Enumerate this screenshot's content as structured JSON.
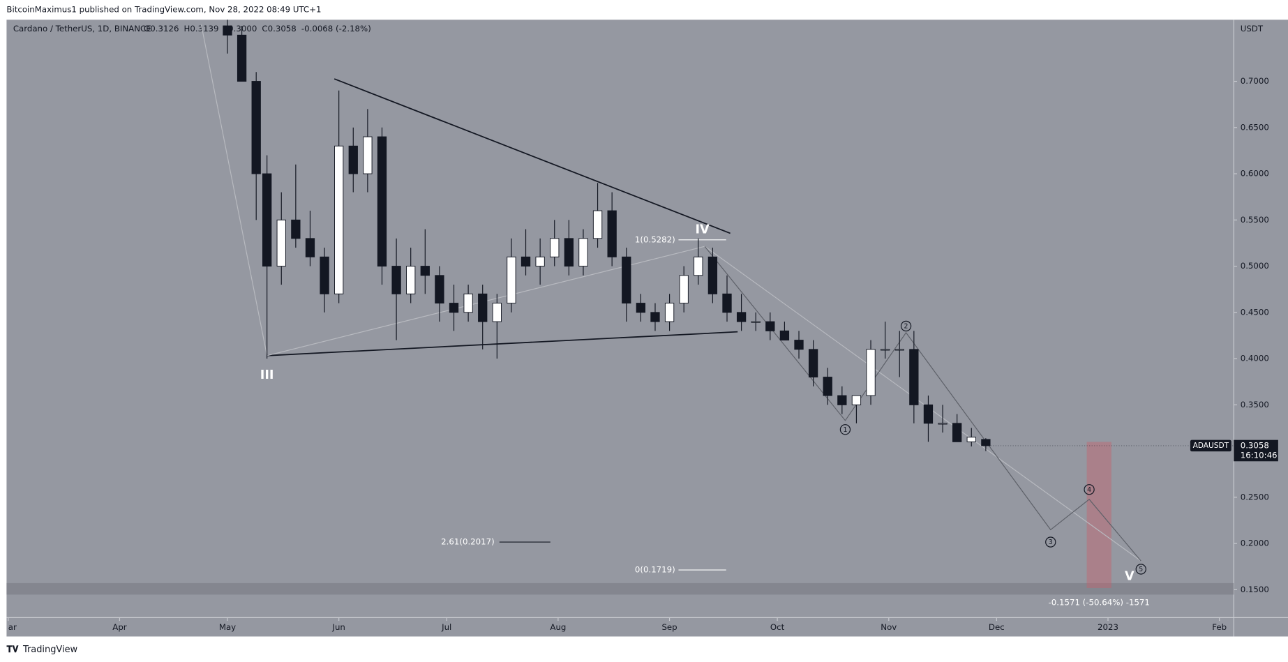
{
  "published": "BitcoinMaximus1 published on TradingView.com, Nov 28, 2022 08:49 UTC+1",
  "footer": "TradingView",
  "chart_data": {
    "type": "candlestick",
    "title": "Cardano / TetherUS, 1D, BINANCE",
    "ohlc_header": [
      "O0.3126",
      "H0.3139",
      "L0.3000",
      "C0.3058",
      "-0.0068 (-2.18%)"
    ],
    "y_unit": "USDT",
    "symbol": "ADAUSDT",
    "last_price": 0.3058,
    "countdown": "16:10:46",
    "x": [
      "2022-05-01",
      "2022-05-05",
      "2022-05-09",
      "2022-05-12",
      "2022-05-16",
      "2022-05-20",
      "2022-05-24",
      "2022-05-28",
      "2022-06-01",
      "2022-06-05",
      "2022-06-09",
      "2022-06-13",
      "2022-06-17",
      "2022-06-21",
      "2022-06-25",
      "2022-06-29",
      "2022-07-03",
      "2022-07-07",
      "2022-07-11",
      "2022-07-15",
      "2022-07-19",
      "2022-07-23",
      "2022-07-27",
      "2022-07-31",
      "2022-08-04",
      "2022-08-08",
      "2022-08-12",
      "2022-08-16",
      "2022-08-20",
      "2022-08-24",
      "2022-08-28",
      "2022-09-01",
      "2022-09-05",
      "2022-09-09",
      "2022-09-13",
      "2022-09-17",
      "2022-09-21",
      "2022-09-25",
      "2022-09-29",
      "2022-10-03",
      "2022-10-07",
      "2022-10-11",
      "2022-10-15",
      "2022-10-19",
      "2022-10-23",
      "2022-10-27",
      "2022-10-31",
      "2022-11-04",
      "2022-11-08",
      "2022-11-12",
      "2022-11-16",
      "2022-11-20",
      "2022-11-24",
      "2022-11-28"
    ],
    "open": [
      0.76,
      0.75,
      0.7,
      0.6,
      0.5,
      0.55,
      0.53,
      0.51,
      0.47,
      0.63,
      0.6,
      0.64,
      0.5,
      0.47,
      0.5,
      0.49,
      0.46,
      0.45,
      0.47,
      0.44,
      0.46,
      0.51,
      0.5,
      0.51,
      0.53,
      0.5,
      0.53,
      0.56,
      0.51,
      0.46,
      0.45,
      0.44,
      0.46,
      0.49,
      0.51,
      0.47,
      0.45,
      0.44,
      0.44,
      0.43,
      0.42,
      0.41,
      0.38,
      0.36,
      0.35,
      0.36,
      0.41,
      0.41,
      0.41,
      0.35,
      0.33,
      0.33,
      0.31,
      0.3126
    ],
    "high": [
      0.77,
      0.76,
      0.71,
      0.62,
      0.58,
      0.61,
      0.56,
      0.52,
      0.69,
      0.65,
      0.67,
      0.65,
      0.53,
      0.52,
      0.54,
      0.5,
      0.48,
      0.48,
      0.48,
      0.47,
      0.53,
      0.54,
      0.53,
      0.55,
      0.55,
      0.54,
      0.59,
      0.58,
      0.52,
      0.47,
      0.46,
      0.47,
      0.5,
      0.53,
      0.52,
      0.49,
      0.47,
      0.45,
      0.45,
      0.44,
      0.43,
      0.42,
      0.39,
      0.37,
      0.36,
      0.42,
      0.44,
      0.43,
      0.43,
      0.36,
      0.35,
      0.34,
      0.325,
      0.3139
    ],
    "low": [
      0.73,
      0.7,
      0.55,
      0.4,
      0.48,
      0.52,
      0.5,
      0.45,
      0.46,
      0.58,
      0.58,
      0.48,
      0.42,
      0.46,
      0.47,
      0.44,
      0.43,
      0.44,
      0.41,
      0.4,
      0.45,
      0.49,
      0.48,
      0.5,
      0.49,
      0.49,
      0.52,
      0.5,
      0.44,
      0.44,
      0.43,
      0.43,
      0.45,
      0.48,
      0.46,
      0.44,
      0.43,
      0.43,
      0.42,
      0.42,
      0.4,
      0.37,
      0.35,
      0.34,
      0.33,
      0.35,
      0.4,
      0.38,
      0.33,
      0.31,
      0.32,
      0.31,
      0.305,
      0.3
    ],
    "close": [
      0.75,
      0.7,
      0.6,
      0.5,
      0.55,
      0.53,
      0.51,
      0.47,
      0.63,
      0.6,
      0.64,
      0.5,
      0.47,
      0.5,
      0.49,
      0.46,
      0.45,
      0.47,
      0.44,
      0.46,
      0.51,
      0.5,
      0.51,
      0.53,
      0.5,
      0.53,
      0.56,
      0.51,
      0.46,
      0.45,
      0.44,
      0.46,
      0.49,
      0.51,
      0.47,
      0.45,
      0.44,
      0.44,
      0.43,
      0.42,
      0.41,
      0.38,
      0.36,
      0.35,
      0.36,
      0.41,
      0.41,
      0.41,
      0.35,
      0.33,
      0.33,
      0.31,
      0.315,
      0.3058
    ],
    "up_color": "#ffffff",
    "down_color": "#131722",
    "xlim": [
      "2022-03-01",
      "2023-02-05"
    ],
    "xticks": [
      {
        "value": "2022-03-01",
        "label": "ar"
      },
      {
        "value": "2022-04-01",
        "label": "Apr"
      },
      {
        "value": "2022-05-01",
        "label": "May"
      },
      {
        "value": "2022-06-01",
        "label": "Jun"
      },
      {
        "value": "2022-07-01",
        "label": "Jul"
      },
      {
        "value": "2022-08-01",
        "label": "Aug"
      },
      {
        "value": "2022-09-01",
        "label": "Sep"
      },
      {
        "value": "2022-10-01",
        "label": "Oct"
      },
      {
        "value": "2022-11-01",
        "label": "Nov"
      },
      {
        "value": "2022-12-01",
        "label": "Dec"
      },
      {
        "value": "2023-01-01",
        "label": "2023"
      },
      {
        "value": "2023-02-01",
        "label": "Feb"
      }
    ],
    "ylim": [
      0.1198,
      0.7666
    ],
    "yticks": [
      {
        "value": 0.15,
        "label": "0.1500"
      },
      {
        "value": 0.2,
        "label": "0.2000"
      },
      {
        "value": 0.25,
        "label": "0.2500"
      },
      {
        "value": 0.3,
        "label": "0.3000"
      },
      {
        "value": 0.35,
        "label": "0.3500"
      },
      {
        "value": 0.4,
        "label": "0.4000"
      },
      {
        "value": 0.45,
        "label": "0.4500"
      },
      {
        "value": 0.5,
        "label": "0.5000"
      },
      {
        "value": 0.55,
        "label": "0.5500"
      },
      {
        "value": 0.6,
        "label": "0.6000"
      },
      {
        "value": 0.65,
        "label": "0.6500"
      },
      {
        "value": 0.7,
        "label": "0.7000"
      }
    ],
    "annotations": {
      "waves": [
        "III",
        "IV",
        "V"
      ],
      "subwaves": [
        "1",
        "2",
        "3",
        "4",
        "5"
      ],
      "fib_top": "1(0.5282)",
      "fib_ext": "2.61(0.2017)",
      "fib_bottom": "0(0.1719)",
      "target": "-0.1571 (-50.64%) -1571"
    }
  }
}
